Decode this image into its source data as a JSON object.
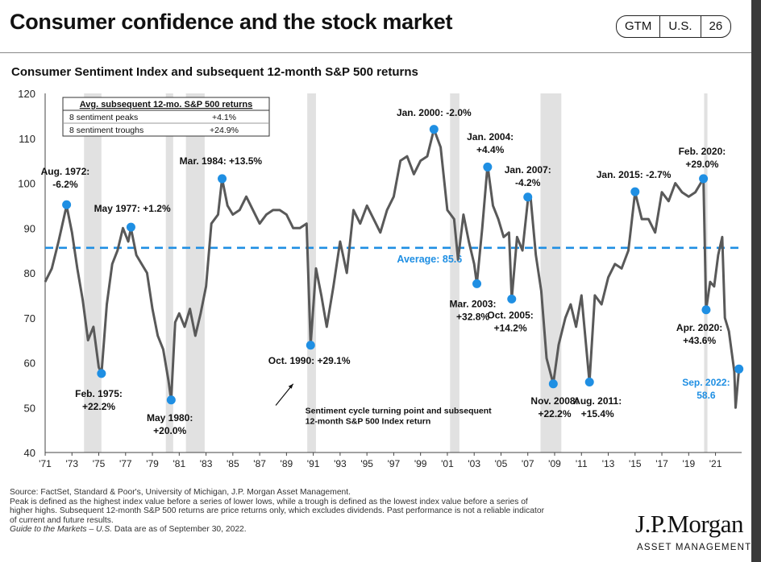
{
  "header": {
    "title": "Consumer confidence and the stock market",
    "badge": [
      "GTM",
      "U.S.",
      "26"
    ]
  },
  "colors": {
    "line": "#595959",
    "marker": "#1f8fe3",
    "average": "#1f8fe3",
    "recession": "#e1e1e1",
    "label_blue": "#1f8fe3"
  },
  "chart_data": {
    "type": "line",
    "title": "Consumer Sentiment Index and subsequent 12-month S&P 500 returns",
    "xlabel": "",
    "ylabel": "",
    "ylim": [
      40,
      120
    ],
    "yticks": [
      "120",
      "110",
      "100",
      "90",
      "80",
      "70",
      "60",
      "50",
      "40"
    ],
    "xticks": [
      "'71",
      "'73",
      "'75",
      "'77",
      "'79",
      "'81",
      "'83",
      "'85",
      "'87",
      "'89",
      "'91",
      "'93",
      "'95",
      "'97",
      "'99",
      "'01",
      "'03",
      "'05",
      "'07",
      "'09",
      "'11",
      "'13",
      "'15",
      "'17",
      "'19",
      "'21"
    ],
    "xlim": [
      1971.0,
      2022.95
    ],
    "recessions": [
      [
        1973.9,
        1975.2
      ],
      [
        1980.0,
        1980.55
      ],
      [
        1981.5,
        1982.9
      ],
      [
        1990.55,
        1991.2
      ],
      [
        2001.2,
        2001.9
      ],
      [
        2007.95,
        2009.5
      ],
      [
        2020.15,
        2020.4
      ]
    ],
    "average": {
      "value": 85.6,
      "label": "Average: 85.6"
    },
    "series": [
      {
        "name": "",
        "points": [
          [
            1971.0,
            78
          ],
          [
            1971.5,
            81
          ],
          [
            1972.0,
            87
          ],
          [
            1972.6,
            95
          ],
          [
            1973.0,
            89
          ],
          [
            1973.4,
            81
          ],
          [
            1973.8,
            74
          ],
          [
            1974.2,
            65
          ],
          [
            1974.6,
            68
          ],
          [
            1975.0,
            59
          ],
          [
            1975.2,
            57.6
          ],
          [
            1975.6,
            73
          ],
          [
            1976.0,
            82
          ],
          [
            1976.4,
            85
          ],
          [
            1976.8,
            90
          ],
          [
            1977.2,
            87
          ],
          [
            1977.4,
            90
          ],
          [
            1977.8,
            84
          ],
          [
            1978.2,
            82
          ],
          [
            1978.6,
            80
          ],
          [
            1979.0,
            72
          ],
          [
            1979.4,
            66
          ],
          [
            1979.8,
            63
          ],
          [
            1980.2,
            56
          ],
          [
            1980.4,
            51.7
          ],
          [
            1980.7,
            69
          ],
          [
            1981.0,
            71
          ],
          [
            1981.4,
            68
          ],
          [
            1981.8,
            72
          ],
          [
            1982.2,
            66
          ],
          [
            1982.6,
            71
          ],
          [
            1983.0,
            77
          ],
          [
            1983.4,
            91
          ],
          [
            1983.9,
            93
          ],
          [
            1984.2,
            101
          ],
          [
            1984.6,
            95
          ],
          [
            1985.0,
            93
          ],
          [
            1985.5,
            94
          ],
          [
            1986.0,
            97
          ],
          [
            1986.5,
            94
          ],
          [
            1987.0,
            91
          ],
          [
            1987.5,
            93
          ],
          [
            1988.0,
            94
          ],
          [
            1988.5,
            94
          ],
          [
            1989.0,
            93
          ],
          [
            1989.5,
            90
          ],
          [
            1990.0,
            90
          ],
          [
            1990.5,
            91
          ],
          [
            1990.8,
            63.9
          ],
          [
            1991.2,
            81
          ],
          [
            1991.6,
            75
          ],
          [
            1992.0,
            68
          ],
          [
            1992.5,
            77
          ],
          [
            1993.0,
            87
          ],
          [
            1993.5,
            80
          ],
          [
            1994.0,
            94
          ],
          [
            1994.5,
            91
          ],
          [
            1995.0,
            95
          ],
          [
            1995.5,
            92
          ],
          [
            1996.0,
            89
          ],
          [
            1996.5,
            94
          ],
          [
            1997.0,
            97
          ],
          [
            1997.5,
            105
          ],
          [
            1998.0,
            106
          ],
          [
            1998.5,
            102
          ],
          [
            1999.0,
            105
          ],
          [
            1999.5,
            106
          ],
          [
            2000.0,
            112
          ],
          [
            2000.5,
            108
          ],
          [
            2001.0,
            94
          ],
          [
            2001.5,
            92
          ],
          [
            2001.8,
            83
          ],
          [
            2002.2,
            93
          ],
          [
            2002.6,
            87
          ],
          [
            2003.0,
            82
          ],
          [
            2003.2,
            77.6
          ],
          [
            2003.6,
            90
          ],
          [
            2004.0,
            104
          ],
          [
            2004.4,
            95
          ],
          [
            2004.8,
            92
          ],
          [
            2005.2,
            88
          ],
          [
            2005.6,
            89
          ],
          [
            2005.8,
            74.2
          ],
          [
            2006.2,
            88
          ],
          [
            2006.6,
            85
          ],
          [
            2007.0,
            96
          ],
          [
            2007.2,
            97
          ],
          [
            2007.6,
            84
          ],
          [
            2008.0,
            76
          ],
          [
            2008.4,
            61
          ],
          [
            2008.9,
            55.3
          ],
          [
            2009.3,
            64
          ],
          [
            2009.8,
            70
          ],
          [
            2010.2,
            73
          ],
          [
            2010.6,
            68
          ],
          [
            2011.0,
            75
          ],
          [
            2011.6,
            55.7
          ],
          [
            2012.0,
            75
          ],
          [
            2012.5,
            73
          ],
          [
            2013.0,
            79
          ],
          [
            2013.5,
            82
          ],
          [
            2014.0,
            81
          ],
          [
            2014.5,
            85
          ],
          [
            2015.0,
            98
          ],
          [
            2015.5,
            92
          ],
          [
            2016.0,
            92
          ],
          [
            2016.5,
            89
          ],
          [
            2017.0,
            98
          ],
          [
            2017.5,
            96
          ],
          [
            2018.0,
            100
          ],
          [
            2018.5,
            98
          ],
          [
            2019.0,
            97
          ],
          [
            2019.5,
            98
          ],
          [
            2020.1,
            101
          ],
          [
            2020.3,
            71.8
          ],
          [
            2020.6,
            78
          ],
          [
            2020.9,
            77
          ],
          [
            2021.2,
            84
          ],
          [
            2021.5,
            88
          ],
          [
            2021.7,
            70
          ],
          [
            2022.0,
            67
          ],
          [
            2022.4,
            58
          ],
          [
            2022.5,
            50
          ],
          [
            2022.75,
            58.6
          ]
        ]
      }
    ],
    "markers": [
      [
        1972.6,
        95.2
      ],
      [
        1975.2,
        57.6
      ],
      [
        1977.4,
        90.2
      ],
      [
        1980.4,
        51.7
      ],
      [
        1984.2,
        101.0
      ],
      [
        1990.8,
        63.9
      ],
      [
        2000.0,
        112.0
      ],
      [
        2003.2,
        77.6
      ],
      [
        2004.0,
        103.6
      ],
      [
        2005.8,
        74.2
      ],
      [
        2007.0,
        96.9
      ],
      [
        2008.9,
        55.3
      ],
      [
        2011.6,
        55.7
      ],
      [
        2015.0,
        98.1
      ],
      [
        2020.1,
        101.0
      ],
      [
        2020.3,
        71.8
      ],
      [
        2022.75,
        58.6
      ]
    ],
    "annotations": [
      {
        "lines": [
          "Aug. 1972:",
          "-6.2%"
        ],
        "x": 1972.5,
        "y": 101.9
      },
      {
        "lines": [
          "Feb. 1975:",
          "+22.2%"
        ],
        "x": 1975.0,
        "y": 52.4
      },
      {
        "lines": [
          "May 1977: +1.2%"
        ],
        "x": 1977.5,
        "y": 93.6
      },
      {
        "lines": [
          "May 1980:",
          "+20.0%"
        ],
        "x": 1980.3,
        "y": 47.0
      },
      {
        "lines": [
          "Mar. 1984: +13.5%"
        ],
        "x": 1984.1,
        "y": 104.2
      },
      {
        "lines": [
          "Oct. 1990: +29.1%"
        ],
        "x": 1990.7,
        "y": 59.7
      },
      {
        "lines": [
          "Jan. 2000: -2.0%"
        ],
        "x": 2000.0,
        "y": 115.0
      },
      {
        "lines": [
          "Jan. 2004:",
          "+4.4%"
        ],
        "x": 2004.2,
        "y": 109.6
      },
      {
        "lines": [
          "Jan. 2007:",
          "-4.2%"
        ],
        "x": 2007.0,
        "y": 102.2
      },
      {
        "lines": [
          "Mar. 2003:",
          "+32.8%"
        ],
        "x": 2002.9,
        "y": 72.4
      },
      {
        "lines": [
          "Oct. 2005:",
          "+14.2%"
        ],
        "x": 2005.7,
        "y": 69.9
      },
      {
        "lines": [
          "Nov. 2008:",
          "+22.2%"
        ],
        "x": 2009.0,
        "y": 50.8
      },
      {
        "lines": [
          "Aug. 2011:",
          "+15.4%"
        ],
        "x": 2012.2,
        "y": 50.8
      },
      {
        "lines": [
          "Jan. 2015: -2.7%"
        ],
        "x": 2014.9,
        "y": 101.2
      },
      {
        "lines": [
          "Feb. 2020:",
          "+29.0%"
        ],
        "x": 2020.0,
        "y": 106.4
      },
      {
        "lines": [
          "Apr. 2020:",
          "+43.6%"
        ],
        "x": 2019.8,
        "y": 67.1
      },
      {
        "lines": [
          "Sep. 2022:",
          "58.6"
        ],
        "x": 2020.3,
        "y": 54.9,
        "blue": true
      }
    ],
    "note": [
      "Sentiment cycle turning point and subsequent",
      "12-month S&P 500 Index return"
    ],
    "table": {
      "header": "Avg. subsequent 12-mo. S&P 500 returns",
      "rows": [
        [
          "8 sentiment peaks",
          "+4.1%"
        ],
        [
          "8 sentiment troughs",
          "+24.9%"
        ]
      ]
    }
  },
  "footer": {
    "lines": [
      "Source: FactSet, Standard & Poor's, University of Michigan, J.P. Morgan Asset Management.",
      "Peak is defined as the highest index value before a series of lower lows, while a trough is defined as the lowest index value before a series of",
      "higher highs. Subsequent 12-month S&P 500 returns are price returns only, which excludes dividends. Past performance is not a reliable indicator",
      "of current and future results."
    ],
    "guide_italic": "Guide to the Markets – U.S.",
    "guide_rest": " Data are as of September 30, 2022.",
    "logo": "J.P.Morgan",
    "logo_sub": "ASSET MANAGEMENT"
  }
}
